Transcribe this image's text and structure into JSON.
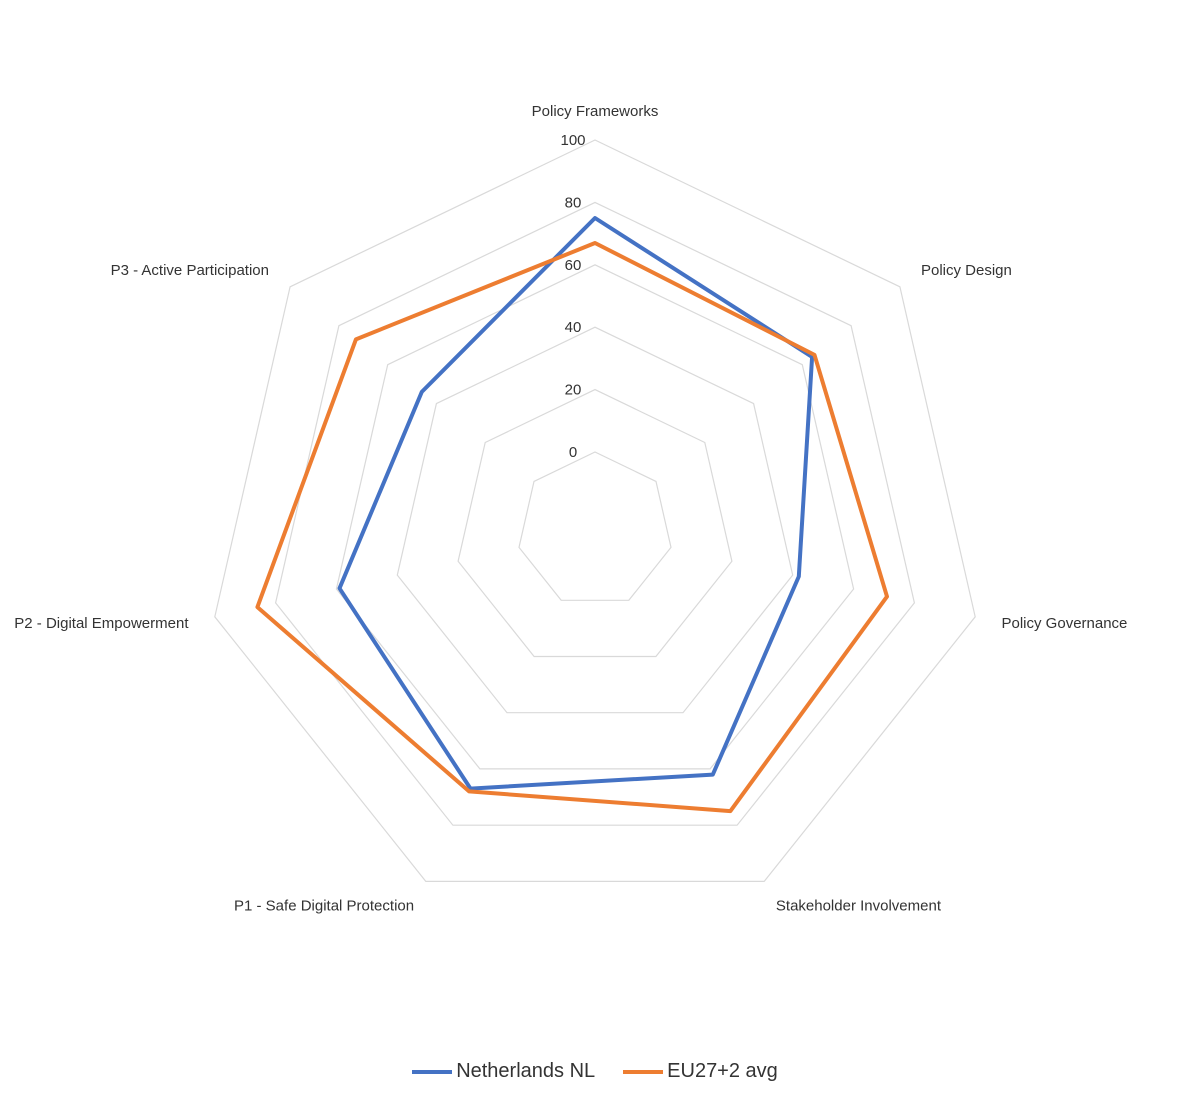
{
  "chart_data": {
    "type": "radar",
    "categories": [
      "Policy Frameworks",
      "Policy Design",
      "Policy Governance",
      "Stakeholder Involvement",
      "P1 - Safe Digital Protection",
      "P2 - Digital Empowerment",
      "P3 - Active Participation"
    ],
    "series": [
      {
        "name": "Netherlands NL",
        "values": [
          75,
          64,
          42,
          62,
          67,
          59,
          46
        ],
        "color": "#4472C4"
      },
      {
        "name": "EU27+2 avg",
        "values": [
          67,
          65,
          71,
          75,
          68,
          86,
          73
        ],
        "color": "#ED7D31"
      }
    ],
    "ticks": [
      "0",
      "20",
      "40",
      "60",
      "80",
      "100"
    ],
    "range": [
      0,
      100
    ],
    "grid": true,
    "legend_position": "bottom"
  }
}
